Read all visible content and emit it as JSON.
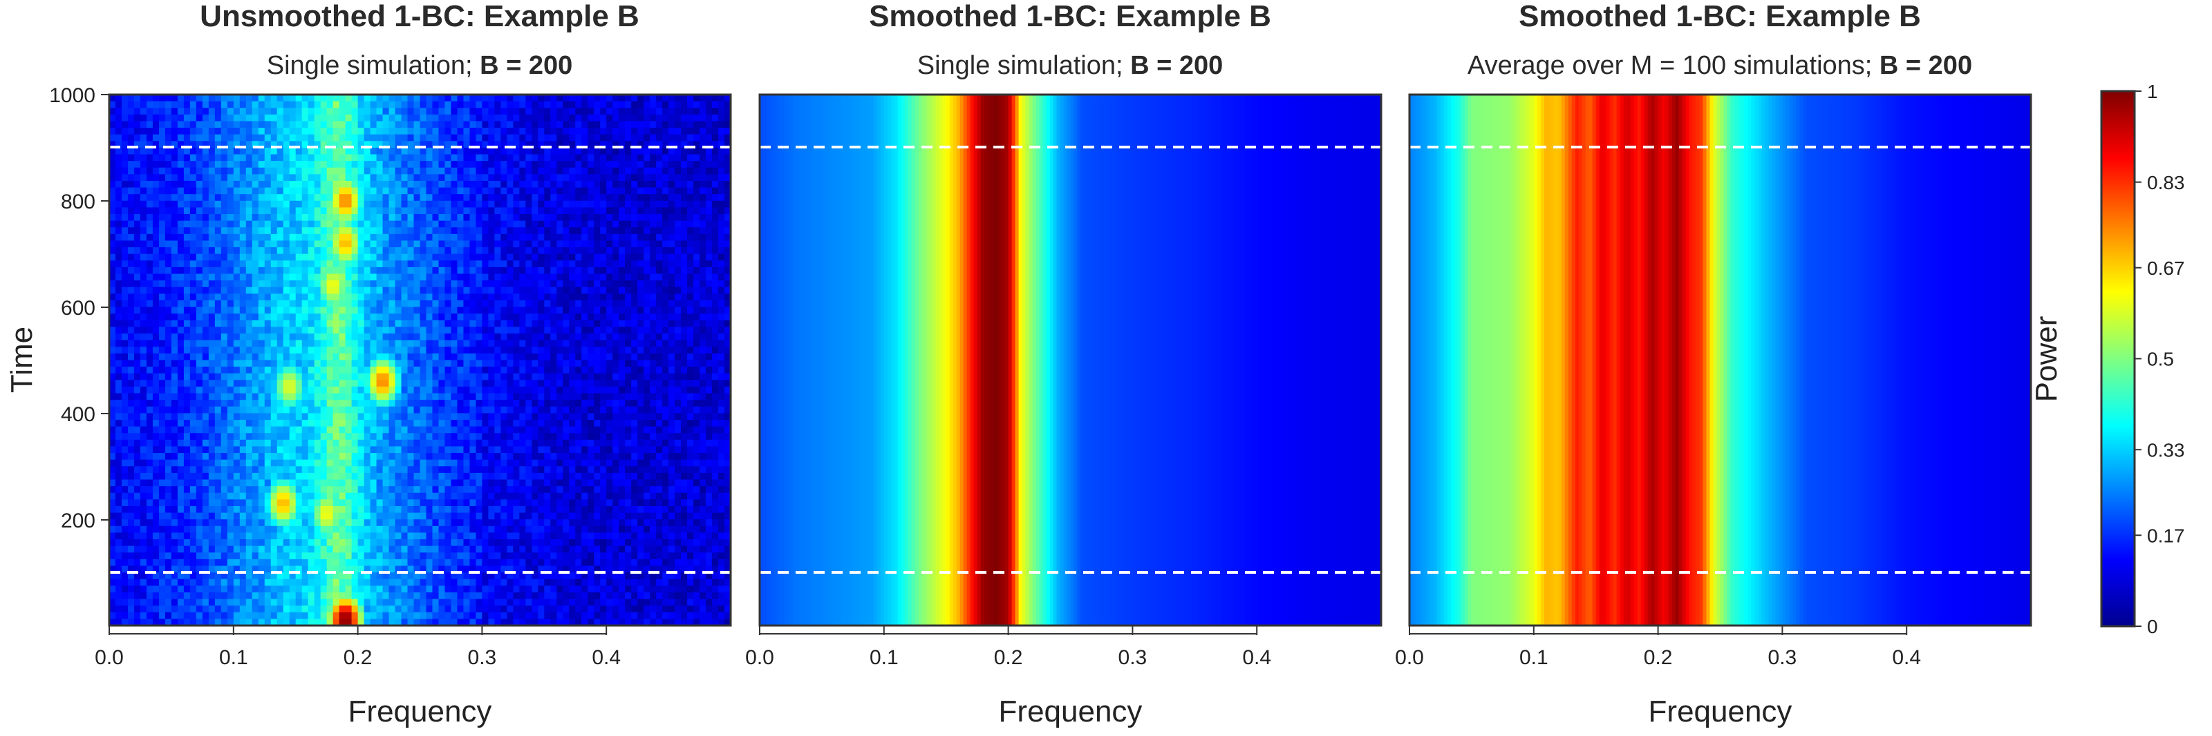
{
  "figure": {
    "colorbar": {
      "label": "Power",
      "ticks": [
        "0",
        "0.17",
        "0.33",
        "0.5",
        "0.67",
        "0.83",
        "1"
      ],
      "tick_values": [
        0,
        0.17,
        0.33,
        0.5,
        0.67,
        0.83,
        1
      ],
      "colormap": [
        "#00008f",
        "#0000ff",
        "#0080ff",
        "#00ffff",
        "#80ff80",
        "#ffff00",
        "#ff8000",
        "#ff0000",
        "#800000"
      ]
    },
    "panels": [
      {
        "title": "Unsmoothed 1-BC: Example B",
        "subtitle_plain": "Single simulation; ",
        "subtitle_bold": "B = 200"
      },
      {
        "title": "Smoothed 1-BC: Example B",
        "subtitle_plain": "Single simulation; ",
        "subtitle_bold": "B = 200"
      },
      {
        "title": "Smoothed 1-BC: Example B",
        "subtitle_plain": "Average over M = 100 simulations; ",
        "subtitle_bold": "B = 200"
      }
    ],
    "xlabel": "Frequency",
    "ylabel": "Time",
    "x_ticks": [
      "0.0",
      "0.1",
      "0.2",
      "0.3",
      "0.4"
    ],
    "y_ticks": [
      "1000",
      "800",
      "600",
      "400",
      "200"
    ],
    "dashed_line_color": "#ffffff"
  },
  "chart_data": [
    {
      "type": "heatmap",
      "title": "Unsmoothed 1-BC: Example B",
      "subtitle": "Single simulation; B = 200",
      "xlabel": "Frequency",
      "ylabel": "Time",
      "xlim": [
        0,
        0.5
      ],
      "ylim": [
        0,
        1000
      ],
      "x_ticks": [
        0.0,
        0.1,
        0.2,
        0.3,
        0.4
      ],
      "y_ticks": [
        200,
        400,
        600,
        800,
        1000
      ],
      "dashed_lines_time": [
        100,
        900
      ],
      "hotspots": [
        {
          "frequency": 0.19,
          "time": 10,
          "power": 1.0
        },
        {
          "frequency": 0.19,
          "time": 800,
          "power": 0.75
        },
        {
          "frequency": 0.19,
          "time": 720,
          "power": 0.7
        },
        {
          "frequency": 0.18,
          "time": 640,
          "power": 0.62
        },
        {
          "frequency": 0.22,
          "time": 460,
          "power": 0.75
        },
        {
          "frequency": 0.145,
          "time": 450,
          "power": 0.6
        },
        {
          "frequency": 0.14,
          "time": 230,
          "power": 0.7
        },
        {
          "frequency": 0.175,
          "time": 210,
          "power": 0.62
        }
      ]
    },
    {
      "type": "heatmap",
      "title": "Smoothed 1-BC: Example B",
      "subtitle": "Single simulation; B = 200",
      "xlabel": "Frequency",
      "xlim": [
        0,
        0.5
      ],
      "ylim": [
        0,
        1000
      ],
      "dashed_lines_time": [
        100,
        900
      ],
      "power_by_frequency": {
        "frequency": [
          0.0,
          0.03,
          0.06,
          0.09,
          0.11,
          0.13,
          0.15,
          0.16,
          0.17,
          0.18,
          0.19,
          0.2,
          0.205,
          0.21,
          0.22,
          0.24,
          0.26,
          0.3,
          0.35,
          0.4,
          0.45,
          0.5
        ],
        "power": [
          0.2,
          0.24,
          0.26,
          0.28,
          0.35,
          0.5,
          0.62,
          0.7,
          0.85,
          0.98,
          1.0,
          0.96,
          0.8,
          0.62,
          0.5,
          0.3,
          0.2,
          0.18,
          0.16,
          0.13,
          0.11,
          0.1
        ]
      }
    },
    {
      "type": "heatmap",
      "title": "Smoothed 1-BC: Example B",
      "subtitle": "Average over M = 100 simulations; B = 200",
      "xlabel": "Frequency",
      "xlim": [
        0,
        0.5
      ],
      "ylim": [
        0,
        1000
      ],
      "dashed_lines_time": [
        100,
        900
      ],
      "power_by_frequency": {
        "frequency": [
          0.0,
          0.02,
          0.04,
          0.05,
          0.08,
          0.1,
          0.11,
          0.12,
          0.135,
          0.145,
          0.155,
          0.165,
          0.175,
          0.185,
          0.195,
          0.205,
          0.215,
          0.225,
          0.235,
          0.245,
          0.26,
          0.29,
          0.32,
          0.36,
          0.4,
          0.45,
          0.5
        ],
        "power": [
          0.25,
          0.3,
          0.4,
          0.5,
          0.52,
          0.6,
          0.7,
          0.68,
          0.85,
          0.78,
          0.9,
          0.83,
          0.92,
          0.85,
          0.96,
          0.88,
          0.98,
          0.86,
          0.82,
          0.6,
          0.42,
          0.3,
          0.2,
          0.18,
          0.14,
          0.12,
          0.1
        ]
      }
    }
  ]
}
